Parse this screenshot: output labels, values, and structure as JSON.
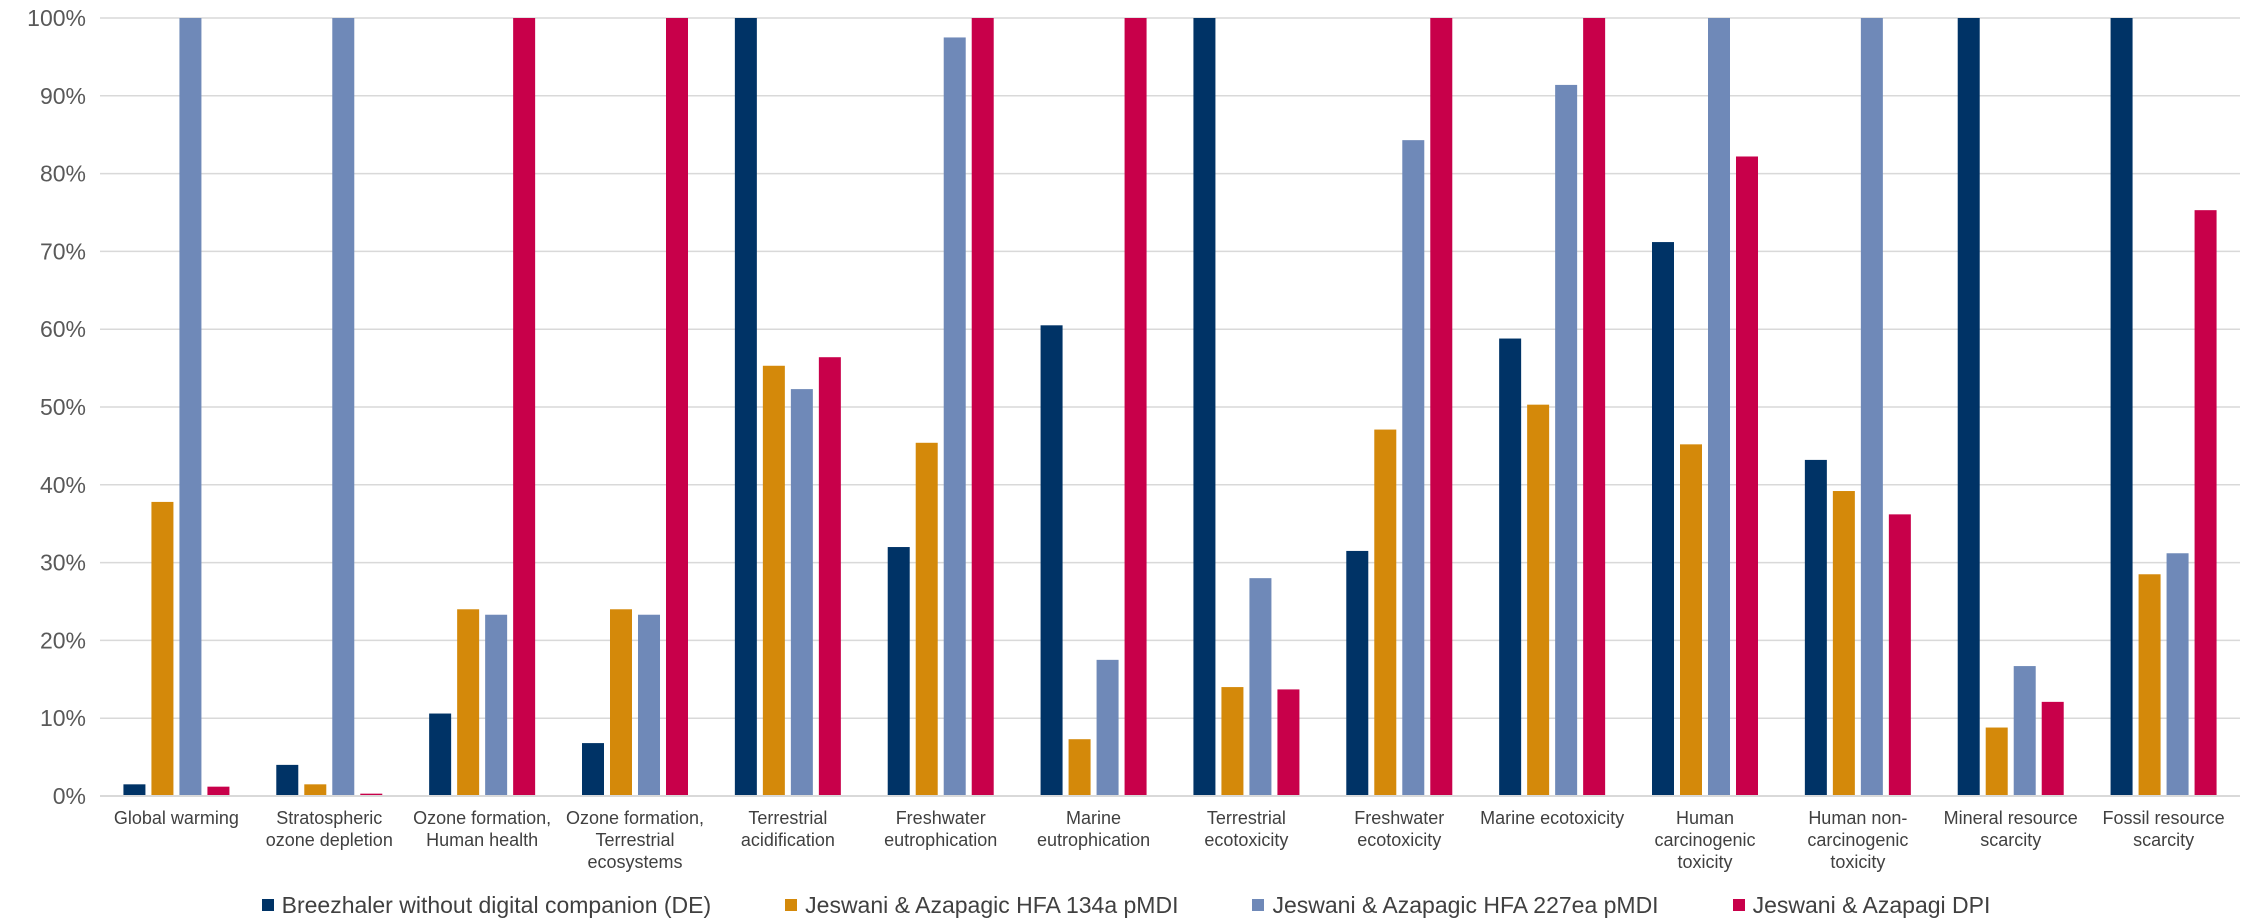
{
  "chart_data": {
    "type": "bar",
    "title": "",
    "xlabel": "",
    "ylabel": "",
    "ylim": [
      0,
      100
    ],
    "yticks": [
      "0%",
      "10%",
      "20%",
      "30%",
      "40%",
      "50%",
      "60%",
      "70%",
      "80%",
      "90%",
      "100%"
    ],
    "grid": true,
    "legend_position": "bottom",
    "categories": [
      [
        "Global warming"
      ],
      [
        "Stratospheric",
        "ozone depletion"
      ],
      [
        "Ozone formation,",
        "Human health"
      ],
      [
        "Ozone formation,",
        "Terrestrial",
        "ecosystems"
      ],
      [
        "Terrestrial",
        "acidification"
      ],
      [
        "Freshwater",
        "eutrophication"
      ],
      [
        "Marine",
        "eutrophication"
      ],
      [
        "Terrestrial",
        "ecotoxicity"
      ],
      [
        "Freshwater",
        "ecotoxicity"
      ],
      [
        "Marine ecotoxicity"
      ],
      [
        "Human",
        "carcinogenic",
        "toxicity"
      ],
      [
        "Human non-",
        "carcinogenic",
        "toxicity"
      ],
      [
        "Mineral resource",
        "scarcity"
      ],
      [
        "Fossil resource",
        "scarcity"
      ]
    ],
    "series": [
      {
        "name": "Breezhaler without digital companion (DE)",
        "color": "#003366",
        "values": [
          1.5,
          4.0,
          10.6,
          6.8,
          100,
          32.0,
          60.5,
          100,
          31.5,
          58.8,
          71.2,
          43.2,
          100,
          100
        ]
      },
      {
        "name": "Jeswani & Azapagic HFA 134a pMDI",
        "color": "#D4890A",
        "values": [
          37.8,
          1.5,
          24.0,
          24.0,
          55.3,
          45.4,
          7.3,
          14.0,
          47.1,
          50.3,
          45.2,
          39.2,
          8.8,
          28.5
        ]
      },
      {
        "name": "Jeswani & Azapagic HFA 227ea pMDI",
        "color": "#6F89B8",
        "values": [
          100,
          100,
          23.3,
          23.3,
          52.3,
          97.5,
          17.5,
          28.0,
          84.3,
          91.4,
          100,
          100,
          16.7,
          31.2
        ]
      },
      {
        "name": "Jeswani & Azapagi DPI",
        "color": "#C8004A",
        "values": [
          1.2,
          0.3,
          100,
          100,
          56.4,
          100,
          100,
          13.7,
          100,
          100,
          82.2,
          36.2,
          12.1,
          75.3
        ]
      }
    ]
  }
}
